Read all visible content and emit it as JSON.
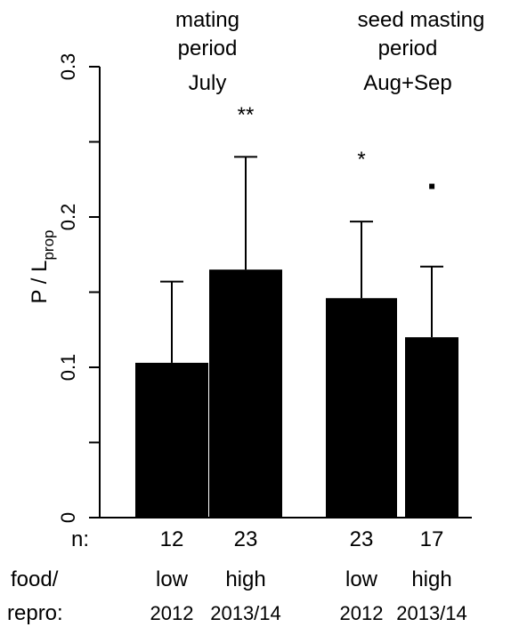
{
  "chart_data": {
    "type": "bar",
    "ylabel_main": "P / L",
    "ylabel_sub": "prop",
    "ylim": [
      0,
      0.3
    ],
    "y_ticks": [
      0,
      0.05,
      0.1,
      0.15,
      0.2,
      0.25,
      0.3
    ],
    "y_tick_labels": [
      {
        "value": 0,
        "label": "0"
      },
      {
        "value": 0.1,
        "label": "0.1"
      },
      {
        "value": 0.2,
        "label": "0.2"
      },
      {
        "value": 0.3,
        "label": "0.3"
      }
    ],
    "bars": [
      {
        "value": 0.103,
        "error_upper": 0.157,
        "n": "12",
        "food": "low",
        "year": "2012",
        "significance": ""
      },
      {
        "value": 0.165,
        "error_upper": 0.24,
        "n": "23",
        "food": "high",
        "year": "2013/14",
        "significance": "**"
      },
      {
        "value": 0.146,
        "error_upper": 0.197,
        "n": "23",
        "food": "low",
        "year": "2012",
        "significance": "*"
      },
      {
        "value": 0.12,
        "error_upper": 0.167,
        "n": "17",
        "food": "high",
        "year": "2013/14",
        "significance": "▪"
      }
    ],
    "period_groups": [
      {
        "lines": [
          "mating",
          "period",
          "July"
        ]
      },
      {
        "lines": [
          "seed masting",
          "period",
          "Aug+Sep"
        ]
      }
    ],
    "row_labels": {
      "n": "n:",
      "food_line1": "food/",
      "food_line2": "repro:"
    },
    "colors": {
      "bar": "#000000",
      "background": "#ffffff"
    }
  }
}
